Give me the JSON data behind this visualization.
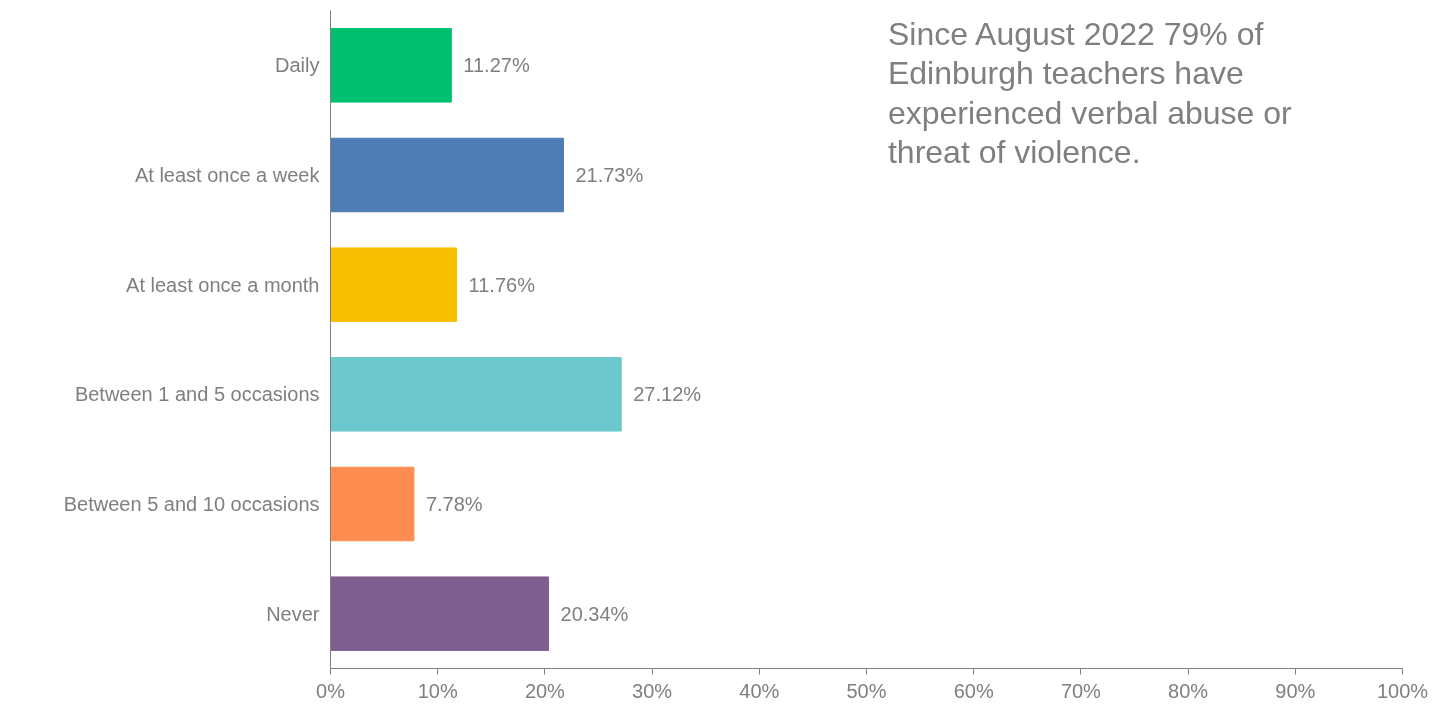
{
  "chart_data": {
    "type": "bar",
    "orientation": "horizontal",
    "categories": [
      "Daily",
      "At least once a week",
      "At least once a month",
      "Between 1 and 5 occasions",
      "Between 5 and 10 occasions",
      "Never"
    ],
    "values": [
      11.27,
      21.73,
      11.76,
      27.12,
      7.78,
      20.34
    ],
    "colors": [
      "#00bf6f",
      "#4e7cb5",
      "#f8be00",
      "#6cc8cc",
      "#ff8c50",
      "#7e5f8f"
    ],
    "value_labels": [
      "11.27%",
      "21.73%",
      "11.76%",
      "27.12%",
      "7.78%",
      "20.34%"
    ],
    "xlim": [
      0,
      100
    ],
    "xticks": [
      {
        "value": 0,
        "label": "0%"
      },
      {
        "value": 10,
        "label": "10%"
      },
      {
        "value": 20,
        "label": "20%"
      },
      {
        "value": 30,
        "label": "30%"
      },
      {
        "value": 40,
        "label": "40%"
      },
      {
        "value": 50,
        "label": "50%"
      },
      {
        "value": 60,
        "label": "60%"
      },
      {
        "value": 70,
        "label": "70%"
      },
      {
        "value": 80,
        "label": "80%"
      },
      {
        "value": 90,
        "label": "90%"
      },
      {
        "value": 100,
        "label": "100%"
      }
    ],
    "grid": false,
    "annotations": [
      "Since August 2022 79% of Edinburgh teachers have experienced verbal abuse or threat of violence."
    ]
  }
}
